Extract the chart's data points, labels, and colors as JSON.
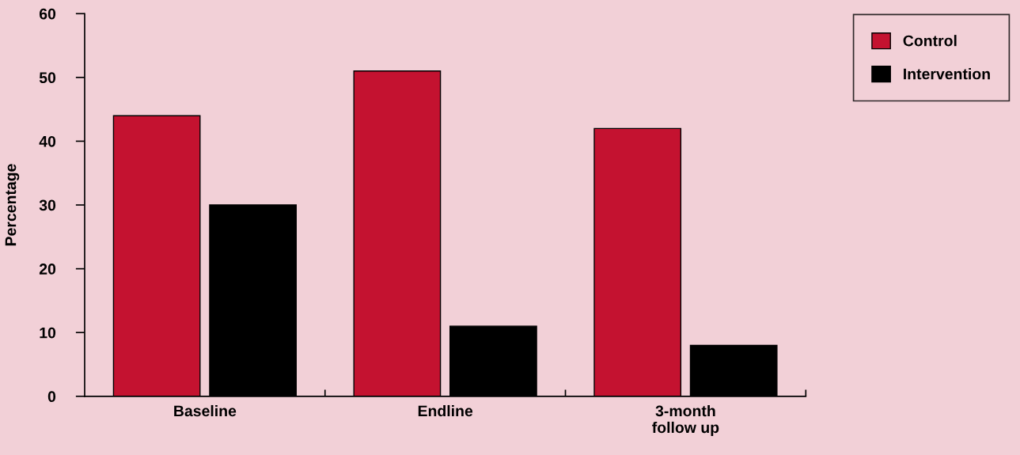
{
  "chart_data": {
    "type": "bar",
    "ylabel": "Percentage",
    "categories": [
      "Baseline",
      "Endline",
      "3-month\nfollow up"
    ],
    "series": [
      {
        "name": "Control",
        "color": "#c41230",
        "values": [
          44,
          51,
          42
        ]
      },
      {
        "name": "Intervention",
        "color": "#000000",
        "values": [
          30,
          11,
          8
        ]
      }
    ],
    "ylim": [
      0,
      60
    ],
    "yticks": [
      0,
      10,
      20,
      30,
      40,
      50,
      60
    ],
    "grid": false,
    "legend": "top right"
  }
}
